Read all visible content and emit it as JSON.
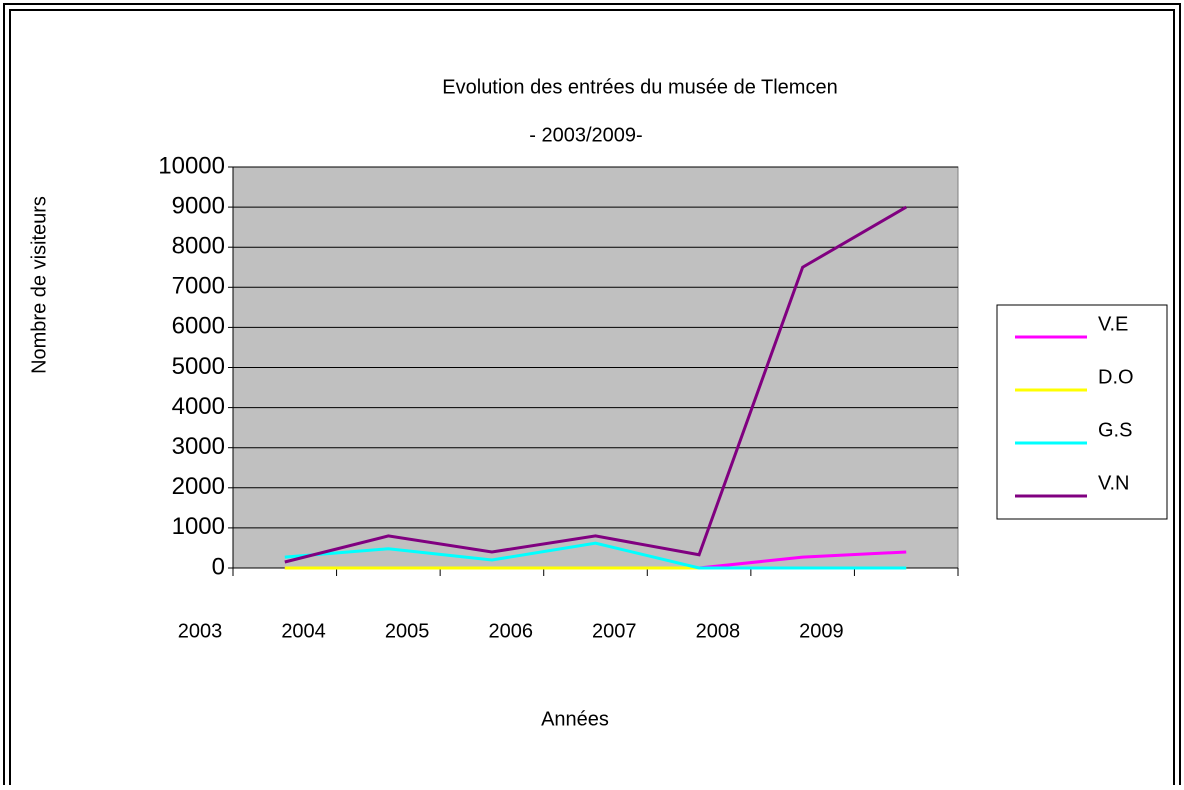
{
  "chart_data": {
    "type": "line",
    "title": "Evolution des entrées du musée de Tlemcen",
    "subtitle": "- 2003/2009-",
    "x_label": "Années",
    "y_label": "Nombre de visiteurs",
    "categories": [
      "2003",
      "2004",
      "2005",
      "2006",
      "2007",
      "2008",
      "2009"
    ],
    "series": [
      {
        "name": "V.E",
        "color": "#ff00ff",
        "values": [
          0,
          0,
          0,
          0,
          0,
          270,
          400
        ]
      },
      {
        "name": "D.O",
        "color": "#ffff00",
        "values": [
          0,
          0,
          0,
          0,
          0,
          0,
          0
        ]
      },
      {
        "name": "G.S",
        "color": "#00ffff",
        "values": [
          270,
          480,
          200,
          620,
          0,
          0,
          0
        ]
      },
      {
        "name": "V.N",
        "color": "#800080",
        "values": [
          150,
          800,
          400,
          800,
          330,
          7500,
          9000
        ]
      }
    ],
    "ylim": [
      0,
      10000
    ],
    "yticks": [
      0,
      1000,
      2000,
      3000,
      4000,
      5000,
      6000,
      7000,
      8000,
      9000,
      10000
    ],
    "grid": true,
    "legend": "right"
  }
}
